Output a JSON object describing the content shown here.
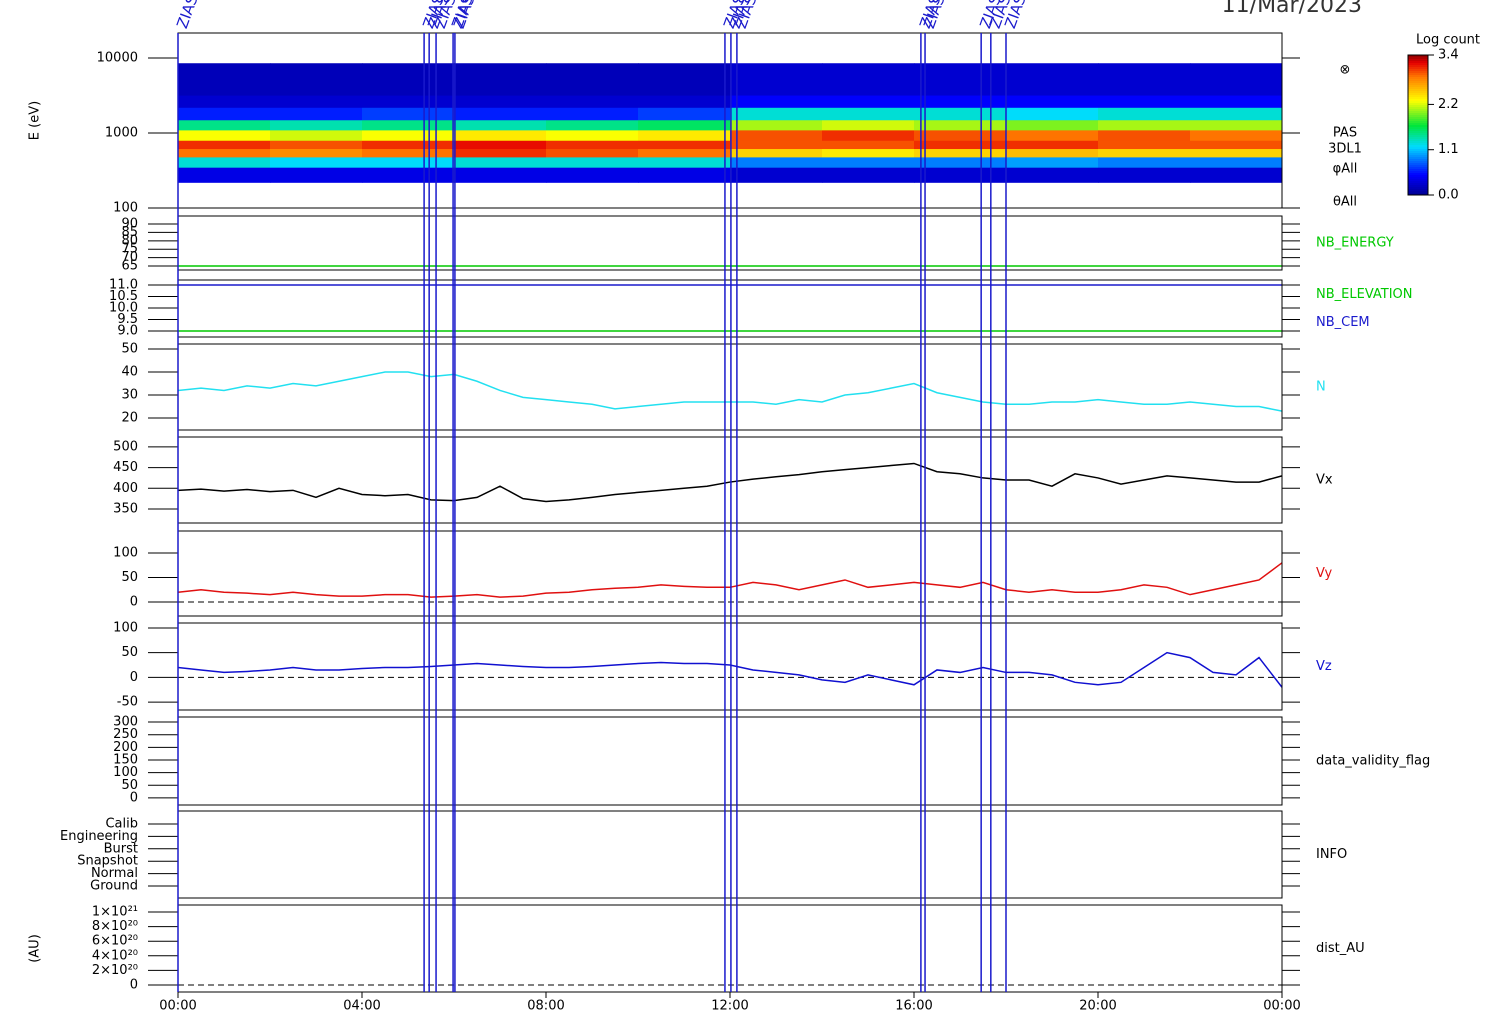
{
  "title": "11/Mar/2023",
  "events": [
    {
      "x": 0,
      "label": "ZIAS"
    },
    {
      "x": 5.35,
      "label": "ZIAS"
    },
    {
      "x": 5.46,
      "label": "ZIAS"
    },
    {
      "x": 5.61,
      "label": "ZIAS"
    },
    {
      "x": 5.98,
      "label": "ZIAS"
    },
    {
      "x": 6.02,
      "label": "ZIAS"
    },
    {
      "x": 11.89,
      "label": "ZIAS"
    },
    {
      "x": 12.02,
      "label": "ZIAS"
    },
    {
      "x": 12.15,
      "label": "ZIAS"
    },
    {
      "x": 16.15,
      "label": "ZIAS"
    },
    {
      "x": 16.24,
      "label": "ZIAS"
    },
    {
      "x": 17.46,
      "label": "ZIAS"
    },
    {
      "x": 17.67,
      "label": "ZIAS"
    },
    {
      "x": 18.0,
      "label": "ZIAS"
    }
  ],
  "chart_data": [
    {
      "type": "heatmap",
      "ylabel": "E (eV)",
      "log": true,
      "ylim": [
        100,
        21500
      ],
      "yticks": [
        100,
        1000,
        10000
      ],
      "labels": [
        "⊗",
        "PAS",
        "3DL1",
        "φAll",
        "θAll"
      ],
      "x_edges": [
        0,
        2,
        4,
        6,
        8,
        10,
        12,
        14,
        16,
        18,
        20,
        22,
        24
      ],
      "y_edges": [
        220,
        350,
        480,
        620,
        800,
        1100,
        1500,
        2200,
        3200,
        8500
      ],
      "z": [
        [
          0.4,
          1.3,
          2.9,
          3.1,
          2.3,
          1.5,
          0.6,
          0.3,
          0.2
        ],
        [
          0.4,
          1.2,
          2.8,
          3.0,
          2.2,
          1.4,
          0.6,
          0.3,
          0.2
        ],
        [
          0.4,
          1.2,
          2.9,
          3.1,
          2.3,
          1.5,
          0.7,
          0.3,
          0.2
        ],
        [
          0.4,
          1.3,
          3.1,
          3.2,
          2.4,
          1.4,
          0.6,
          0.3,
          0.2
        ],
        [
          0.4,
          1.3,
          3.0,
          3.1,
          2.3,
          1.5,
          0.6,
          0.3,
          0.2
        ],
        [
          0.4,
          1.3,
          2.9,
          3.1,
          2.4,
          1.6,
          0.7,
          0.3,
          0.2
        ],
        [
          0.3,
          0.9,
          2.5,
          3.0,
          3.0,
          2.1,
          1.3,
          0.5,
          0.3
        ],
        [
          0.3,
          0.9,
          2.4,
          3.0,
          3.1,
          2.2,
          1.3,
          0.5,
          0.3
        ],
        [
          0.3,
          0.9,
          2.5,
          3.1,
          3.0,
          2.1,
          1.3,
          0.5,
          0.3
        ],
        [
          0.3,
          1.0,
          2.6,
          3.1,
          2.9,
          2.0,
          1.2,
          0.5,
          0.3
        ],
        [
          0.3,
          0.9,
          2.5,
          3.0,
          3.0,
          2.1,
          1.3,
          0.5,
          0.3
        ],
        [
          0.3,
          0.9,
          2.5,
          3.0,
          2.9,
          2.1,
          1.3,
          0.5,
          0.3
        ]
      ],
      "colorbar_title": "Log count",
      "zlim": [
        0,
        3.4
      ],
      "zticks": [
        {
          "value": 0,
          "label": "0.0"
        },
        1.1,
        2.2,
        3.4
      ]
    },
    {
      "type": "line",
      "ylim": [
        62.6,
        94.8
      ],
      "yticks": [
        65,
        70,
        75,
        80,
        85,
        90
      ],
      "x": [
        0,
        24
      ],
      "series": [
        {
          "name": "NB_ENERGY",
          "color": "#00c800",
          "values": [
            65,
            65
          ]
        }
      ]
    },
    {
      "type": "line",
      "ylim": [
        8.74,
        11.22
      ],
      "yticks": [
        {
          "value": 9,
          "label": "9.0"
        },
        9.5,
        {
          "value": 10,
          "label": "10.0"
        },
        10.5,
        {
          "value": 11,
          "label": "11.0"
        }
      ],
      "x": [
        0,
        24
      ],
      "series": [
        {
          "name": "NB_ELEVATION",
          "color": "#00c800",
          "values": [
            9.0,
            9.0
          ]
        },
        {
          "name": "NB_CEM",
          "color": "#1a1acc",
          "values": [
            11.0,
            11.0
          ]
        }
      ]
    },
    {
      "type": "line",
      "ylim": [
        14.8,
        52.2
      ],
      "yticks": [
        20,
        30,
        40,
        50
      ],
      "x": [
        0,
        0.5,
        1,
        1.5,
        2,
        2.5,
        3,
        3.5,
        4,
        4.5,
        5,
        5.5,
        6,
        6.5,
        7,
        7.5,
        8,
        8.5,
        9,
        9.5,
        10,
        10.5,
        11,
        11.5,
        12,
        12.5,
        13,
        13.5,
        14,
        14.5,
        15,
        15.5,
        16,
        16.5,
        17,
        17.5,
        18,
        18.5,
        19,
        19.5,
        20,
        20.5,
        21,
        21.5,
        22,
        22.5,
        23,
        23.5,
        24
      ],
      "series": [
        {
          "name": "N",
          "color": "#22e0f0",
          "values": [
            32,
            33,
            32,
            34,
            33,
            35,
            34,
            36,
            38,
            40,
            40,
            38,
            39,
            36,
            32,
            29,
            28,
            27,
            26,
            24,
            25,
            26,
            27,
            27,
            27,
            27,
            26,
            28,
            27,
            30,
            31,
            33,
            35,
            31,
            29,
            27,
            26,
            26,
            27,
            27,
            28,
            27,
            26,
            26,
            27,
            26,
            25,
            25,
            23
          ]
        }
      ]
    },
    {
      "type": "line",
      "ylim": [
        316,
        524
      ],
      "yticks": [
        350,
        400,
        450,
        500
      ],
      "x": [
        0,
        0.5,
        1,
        1.5,
        2,
        2.5,
        3,
        3.5,
        4,
        4.5,
        5,
        5.5,
        6,
        6.5,
        7,
        7.5,
        8,
        8.5,
        9,
        9.5,
        10,
        10.5,
        11,
        11.5,
        12,
        12.5,
        13,
        13.5,
        14,
        14.5,
        15,
        15.5,
        16,
        16.5,
        17,
        17.5,
        18,
        18.5,
        19,
        19.5,
        20,
        20.5,
        21,
        21.5,
        22,
        22.5,
        23,
        23.5,
        24
      ],
      "series": [
        {
          "name": "Vx",
          "color": "#000000",
          "values": [
            395,
            398,
            393,
            397,
            392,
            395,
            378,
            400,
            385,
            382,
            385,
            372,
            370,
            378,
            405,
            375,
            368,
            372,
            378,
            385,
            390,
            395,
            400,
            405,
            415,
            422,
            428,
            433,
            440,
            445,
            450,
            455,
            460,
            440,
            435,
            425,
            420,
            420,
            405,
            435,
            425,
            410,
            420,
            430,
            425,
            420,
            415,
            415,
            430
          ]
        }
      ]
    },
    {
      "type": "line",
      "ylim": [
        -28.6,
        145
      ],
      "yticks": [
        0,
        50,
        100
      ],
      "zero_line": true,
      "x": [
        0,
        0.5,
        1,
        1.5,
        2,
        2.5,
        3,
        3.5,
        4,
        4.5,
        5,
        5.5,
        6,
        6.5,
        7,
        7.5,
        8,
        8.5,
        9,
        9.5,
        10,
        10.5,
        11,
        11.5,
        12,
        12.5,
        13,
        13.5,
        14,
        14.5,
        15,
        15.5,
        16,
        16.5,
        17,
        17.5,
        18,
        18.5,
        19,
        19.5,
        20,
        20.5,
        21,
        21.5,
        22,
        22.5,
        23,
        23.5,
        24
      ],
      "series": [
        {
          "name": "Vy",
          "color": "#e01010",
          "values": [
            20,
            25,
            20,
            18,
            15,
            20,
            15,
            12,
            12,
            15,
            15,
            10,
            12,
            15,
            10,
            12,
            18,
            20,
            25,
            28,
            30,
            35,
            32,
            30,
            30,
            40,
            35,
            25,
            35,
            45,
            30,
            35,
            40,
            35,
            30,
            40,
            25,
            20,
            25,
            20,
            20,
            25,
            35,
            30,
            15,
            25,
            35,
            45,
            80
          ]
        }
      ]
    },
    {
      "type": "line",
      "ylim": [
        -66,
        110
      ],
      "yticks": [
        -50,
        0,
        50,
        100
      ],
      "zero_line": true,
      "x": [
        0,
        0.5,
        1,
        1.5,
        2,
        2.5,
        3,
        3.5,
        4,
        4.5,
        5,
        5.5,
        6,
        6.5,
        7,
        7.5,
        8,
        8.5,
        9,
        9.5,
        10,
        10.5,
        11,
        11.5,
        12,
        12.5,
        13,
        13.5,
        14,
        14.5,
        15,
        15.5,
        16,
        16.5,
        17,
        17.5,
        18,
        18.5,
        19,
        19.5,
        20,
        20.5,
        21,
        21.5,
        22,
        22.5,
        23,
        23.5,
        24
      ],
      "series": [
        {
          "name": "Vz",
          "color": "#1010d0",
          "values": [
            20,
            15,
            10,
            12,
            15,
            20,
            15,
            15,
            18,
            20,
            20,
            22,
            25,
            28,
            25,
            22,
            20,
            20,
            22,
            25,
            28,
            30,
            28,
            28,
            25,
            15,
            10,
            5,
            -5,
            -10,
            5,
            -5,
            -15,
            15,
            10,
            20,
            10,
            10,
            5,
            -10,
            -15,
            -10,
            20,
            50,
            40,
            10,
            5,
            40,
            -20
          ]
        }
      ]
    },
    {
      "type": "empty",
      "label": "data_validity_flag",
      "ylim": [
        -28,
        320
      ],
      "yticks": [
        0,
        50,
        100,
        150,
        200,
        250,
        300
      ]
    },
    {
      "type": "category",
      "label": "INFO",
      "categories": [
        "Calib",
        "Engineering",
        "Burst",
        "Snapshot",
        "Normal",
        "Ground"
      ]
    },
    {
      "type": "empty",
      "label": "dist_AU",
      "ylabel": "(AU)",
      "zero_line": true,
      "ylim": [
        -9.6e+19,
        1.096e+21
      ],
      "yticks": [
        0,
        {
          "value": 2e+20,
          "label": "2×10²⁰"
        },
        {
          "value": 4e+20,
          "label": "4×10²⁰"
        },
        {
          "value": 6e+20,
          "label": "6×10²⁰"
        },
        {
          "value": 8e+20,
          "label": "8×10²⁰"
        },
        {
          "value": 1e+21,
          "label": "1×10²¹"
        }
      ],
      "xlim": [
        0,
        24
      ],
      "xticks": [
        {
          "value": 0,
          "label": "00:00"
        },
        {
          "value": 4,
          "label": "04:00"
        },
        {
          "value": 8,
          "label": "08:00"
        },
        {
          "value": 12,
          "label": "12:00"
        },
        {
          "value": 16,
          "label": "16:00"
        },
        {
          "value": 20,
          "label": "20:00"
        },
        {
          "value": 24,
          "label": "00:00"
        }
      ]
    }
  ]
}
